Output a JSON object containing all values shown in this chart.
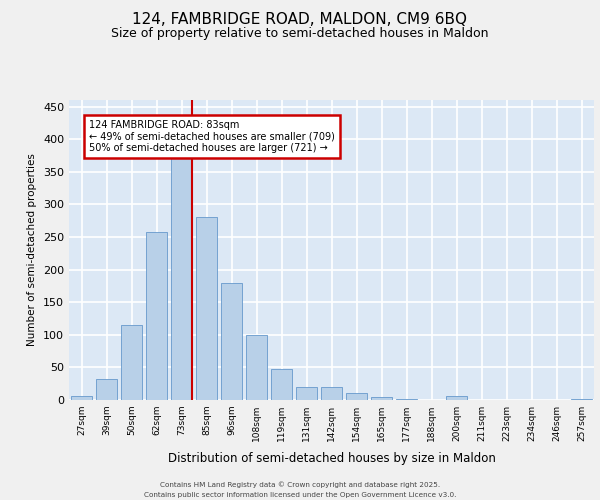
{
  "title1": "124, FAMBRIDGE ROAD, MALDON, CM9 6BQ",
  "title2": "Size of property relative to semi-detached houses in Maldon",
  "xlabel": "Distribution of semi-detached houses by size in Maldon",
  "ylabel": "Number of semi-detached properties",
  "bins": [
    "27sqm",
    "39sqm",
    "50sqm",
    "62sqm",
    "73sqm",
    "85sqm",
    "96sqm",
    "108sqm",
    "119sqm",
    "131sqm",
    "142sqm",
    "154sqm",
    "165sqm",
    "177sqm",
    "188sqm",
    "200sqm",
    "211sqm",
    "223sqm",
    "234sqm",
    "246sqm",
    "257sqm"
  ],
  "values": [
    6,
    32,
    115,
    257,
    375,
    280,
    180,
    100,
    47,
    20,
    20,
    10,
    5,
    2,
    0,
    6,
    0,
    0,
    0,
    0,
    2
  ],
  "bar_color": "#b8d0e8",
  "bar_edge_color": "#6699cc",
  "plot_bg_color": "#dce8f5",
  "grid_color": "#ffffff",
  "vline_color": "#cc0000",
  "vline_x_after_bin": 4,
  "annotation_title": "124 FAMBRIDGE ROAD: 83sqm",
  "annotation_line1": "← 49% of semi-detached houses are smaller (709)",
  "annotation_line2": "50% of semi-detached houses are larger (721) →",
  "annotation_box_edge": "#cc0000",
  "footer1": "Contains HM Land Registry data © Crown copyright and database right 2025.",
  "footer2": "Contains public sector information licensed under the Open Government Licence v3.0.",
  "fig_bg_color": "#f0f0f0",
  "ylim": [
    0,
    460
  ],
  "yticks": [
    0,
    50,
    100,
    150,
    200,
    250,
    300,
    350,
    400,
    450
  ]
}
